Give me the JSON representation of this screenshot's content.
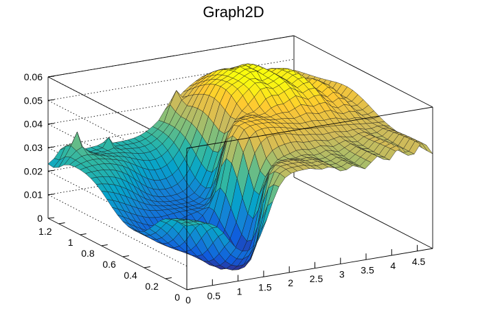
{
  "chart_data": {
    "type": "surface3d",
    "title": "Graph2D",
    "xlabel": "",
    "ylabel": "",
    "zlabel": "",
    "xlim": [
      0,
      4.8
    ],
    "ylim": [
      0,
      1.3
    ],
    "zlim": [
      0,
      0.06
    ],
    "x_ticks": [
      0,
      0.5,
      1,
      1.5,
      2,
      2.5,
      3,
      3.5,
      4,
      4.5
    ],
    "x_tick_labels": [
      "0",
      "0.5",
      "1",
      "1.5",
      "2",
      "2.5",
      "3",
      "3.5",
      "4",
      "4.5"
    ],
    "y_ticks": [
      0,
      0.2,
      0.4,
      0.6,
      0.8,
      1,
      1.2
    ],
    "y_tick_labels": [
      "0",
      "0.2",
      "0.4",
      "0.6",
      "0.8",
      "1",
      "1.2"
    ],
    "z_ticks": [
      0,
      0.01,
      0.02,
      0.03,
      0.04,
      0.05,
      0.06
    ],
    "z_tick_labels": [
      "0",
      "0.01",
      "0.02",
      "0.03",
      "0.04",
      "0.05",
      "0.06"
    ],
    "grid": true,
    "palette": [
      "#352a87",
      "#0f5cdd",
      "#1481d6",
      "#06a4ca",
      "#2eb7a4",
      "#87bf77",
      "#d1bb59",
      "#fec832",
      "#f9fb0e"
    ],
    "surface_points": [
      {
        "x": 0.0,
        "y": 1.25,
        "z": 0.022
      },
      {
        "x": 0.3,
        "y": 1.22,
        "z": 0.034
      },
      {
        "x": 0.5,
        "y": 1.25,
        "z": 0.026
      },
      {
        "x": 0.0,
        "y": 0.0,
        "z": 0.027
      },
      {
        "x": 1.2,
        "y": 0.45,
        "z": 0.004
      },
      {
        "x": 1.4,
        "y": 0.25,
        "z": 0.0
      },
      {
        "x": 1.6,
        "y": 0.75,
        "z": 0.012
      },
      {
        "x": 2.2,
        "y": 0.1,
        "z": 0.043
      },
      {
        "x": 3.2,
        "y": 0.9,
        "z": 0.058
      },
      {
        "x": 2.4,
        "y": 0.55,
        "z": 0.05
      },
      {
        "x": 4.8,
        "y": 0.0,
        "z": 0.043
      },
      {
        "x": 4.8,
        "y": 1.3,
        "z": 0.045
      }
    ]
  }
}
